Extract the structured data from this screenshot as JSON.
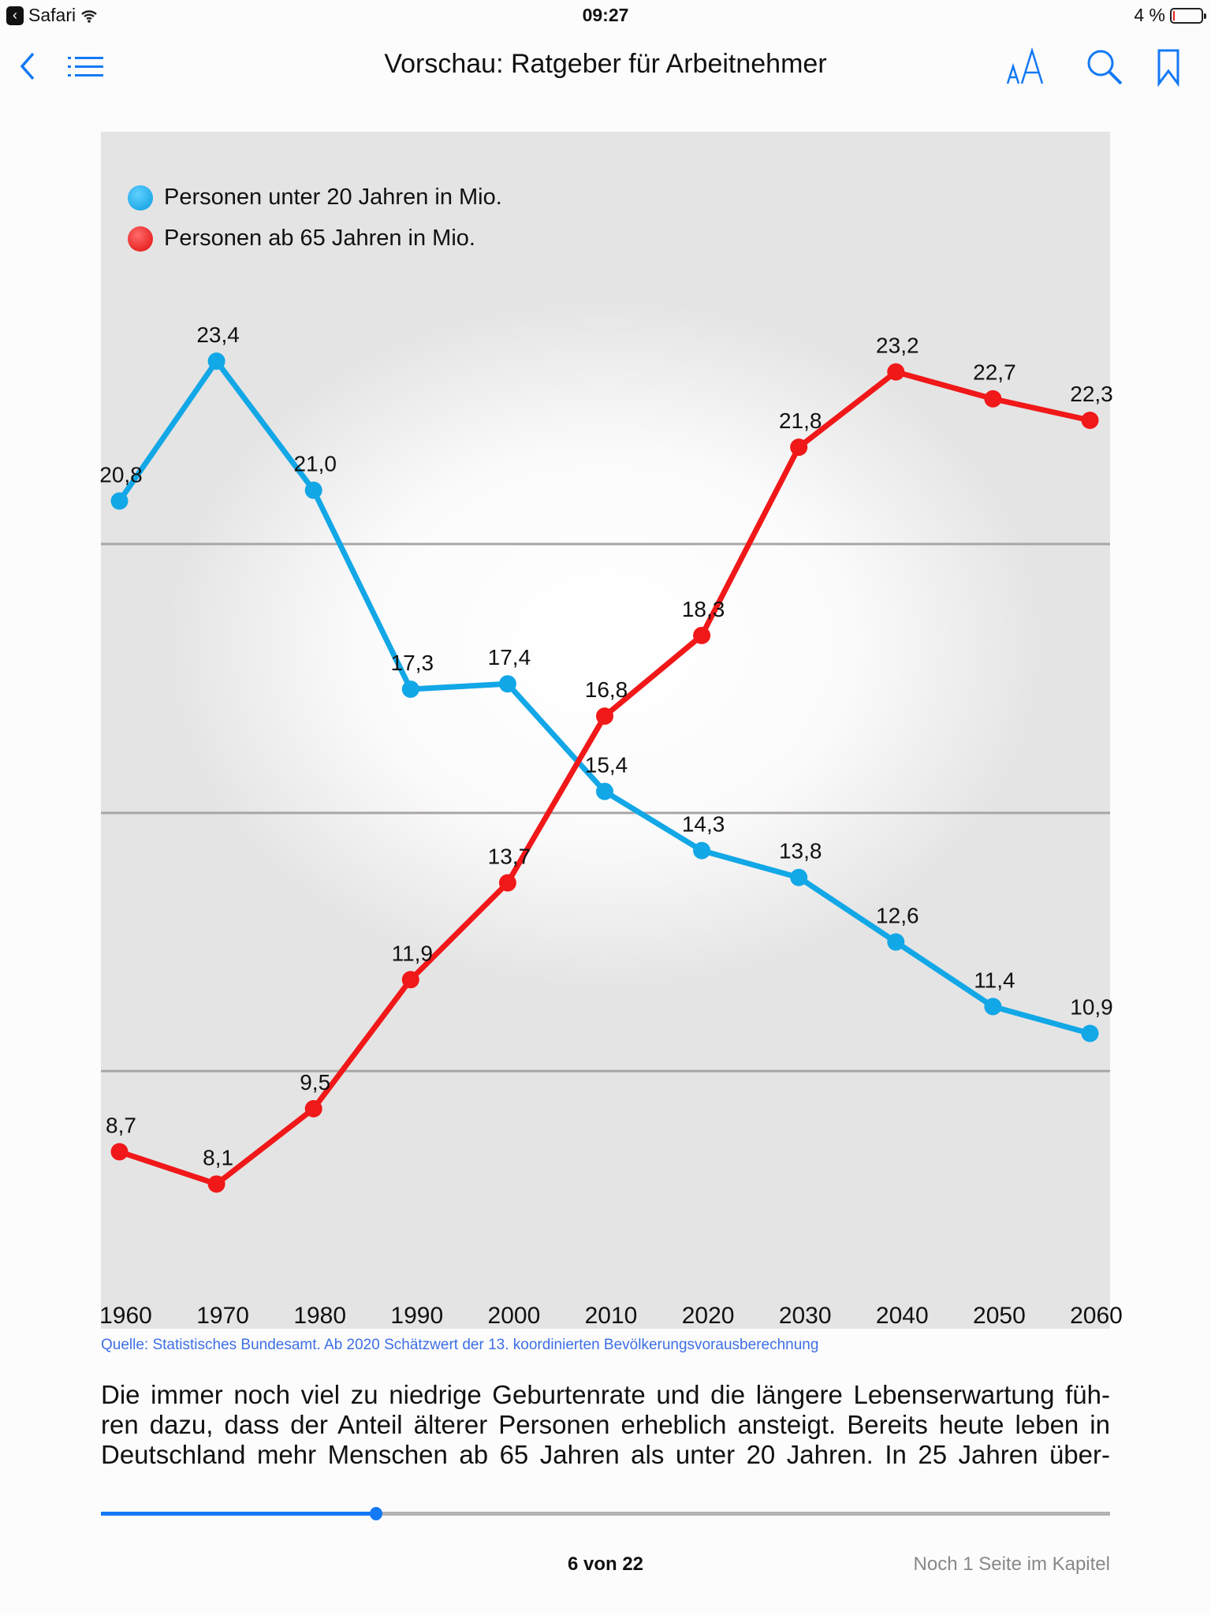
{
  "status_bar": {
    "back_app": "Safari",
    "time": "09:27",
    "battery": "4 %"
  },
  "header": {
    "title": "Vorschau: Ratgeber für Arbeitnehmer",
    "icons": [
      "back-chevron-icon",
      "toc-list-icon",
      "text-size-icon",
      "search-icon",
      "bookmark-icon"
    ]
  },
  "chart_data": {
    "type": "line",
    "x": [
      "1960",
      "1970",
      "1980",
      "1990",
      "2000",
      "2010",
      "2020",
      "2030",
      "2040",
      "2050",
      "2060"
    ],
    "series": [
      {
        "name": "Personen unter 20 Jahren in Mio.",
        "color": "#12a7e6",
        "values": [
          20.8,
          23.4,
          21.0,
          17.3,
          17.4,
          15.4,
          14.3,
          13.8,
          12.6,
          11.4,
          10.9
        ],
        "labels": [
          "20,8",
          "23,4",
          "21,0",
          "17,3",
          "17,4",
          "15,4",
          "14,3",
          "13,8",
          "12,6",
          "11,4",
          "10,9"
        ]
      },
      {
        "name": "Personen ab 65 Jahren in Mio.",
        "color": "#f01818",
        "values": [
          8.7,
          8.1,
          9.5,
          11.9,
          13.7,
          16.8,
          18.3,
          21.8,
          23.2,
          22.7,
          22.3
        ],
        "labels": [
          "8,7",
          "8,1",
          "9,5",
          "11,9",
          "13,7",
          "16,8",
          "18,3",
          "21,8",
          "23,2",
          "22,7",
          "22,3"
        ]
      }
    ],
    "gridlines": [
      20,
      15,
      10.2
    ],
    "legend_position": "top-left",
    "grid": true
  },
  "source": "Quelle: Statistisches Bundesamt. Ab 2020 Schätzwert der 13. koordinierten Bevölkerungsvorausberechnung",
  "body_lines": [
    "Die immer noch viel zu niedrige Geburtenrate und die längere Lebenserwartung füh-",
    "ren dazu, dass der Anteil älterer Personen erheblich ansteigt. Bereits heute leben in",
    "Deutschland mehr Menschen ab 65 Jahren als unter 20 Jahren. In 25 Jahren über-"
  ],
  "footer": {
    "page": "6 von 22",
    "remaining": "Noch 1 Seite im Kapitel",
    "progress": 0.273
  },
  "colors": {
    "accent": "#1479f5"
  }
}
